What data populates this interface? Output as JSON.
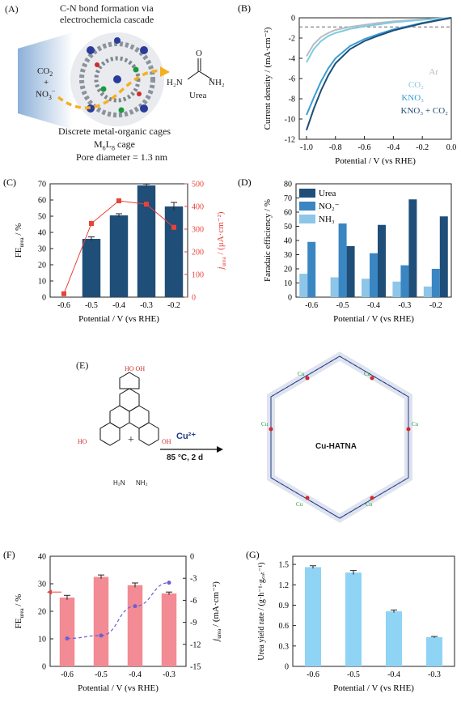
{
  "panels": {
    "A": {
      "label": "(A)",
      "title_line1": "C-N bond formation via",
      "title_line2": "electrochemicla cascade",
      "reactant_line1": "CO",
      "reactant_sub1": "2",
      "reactant_plus": "+",
      "reactant_line2": "NO",
      "reactant_sub2": "3",
      "reactant_sup2": "−",
      "product": "Urea",
      "product_formula_left": "H₂N",
      "product_formula_right": "NH₂",
      "product_o": "O",
      "caption_line1": "Discrete metal-organic cages",
      "caption_line2_a": "M",
      "caption_line2_s1": "6",
      "caption_line2_b": "L",
      "caption_line2_s2": "8",
      "caption_line2_c": " cage",
      "caption_line3": "Pore diameter = 1.3 nm"
    },
    "E": {
      "label": "(E)",
      "reagent": "Cu²⁺",
      "conditions": "85 °C, 2 d",
      "plus": "+",
      "product_name": "Cu-HATNA",
      "metal_label": "Cu",
      "oh_label": "OH",
      "ho_label": "HO",
      "amine_left": "H₂N",
      "amine_right": "NH₂"
    }
  },
  "chart_data": [
    {
      "id": "B",
      "label": "(B)",
      "type": "line",
      "xlabel": "Potential / V (vs RHE)",
      "ylabel": "Current density / (mA·cm⁻²)",
      "xlim": [
        -1.05,
        0.0
      ],
      "ylim": [
        -12,
        0
      ],
      "xticks": [
        "-1.0",
        "-0.8",
        "-0.6",
        "-0.4",
        "-0.2",
        "0.0"
      ],
      "yticks": [
        "0",
        "-2",
        "-4",
        "-6",
        "-8",
        "-10",
        "-12"
      ],
      "reference_line_y": -0.9,
      "series": [
        {
          "name": "Ar",
          "color": "#b7bcc1",
          "x": [
            -1.0,
            -0.95,
            -0.9,
            -0.85,
            -0.8,
            -0.7,
            -0.6,
            -0.5,
            -0.4,
            -0.2,
            0.0
          ],
          "y": [
            -3.8,
            -2.6,
            -1.9,
            -1.5,
            -1.2,
            -0.9,
            -0.7,
            -0.5,
            -0.35,
            -0.15,
            0.0
          ]
        },
        {
          "name": "CO₂",
          "color": "#7fcbe3",
          "x": [
            -1.0,
            -0.95,
            -0.9,
            -0.85,
            -0.8,
            -0.7,
            -0.6,
            -0.5,
            -0.4,
            -0.2,
            0.0
          ],
          "y": [
            -4.4,
            -3.1,
            -2.3,
            -1.8,
            -1.5,
            -1.1,
            -0.85,
            -0.65,
            -0.45,
            -0.2,
            0.0
          ]
        },
        {
          "name": "KNO₃",
          "color": "#3a9fd1",
          "x": [
            -1.0,
            -0.95,
            -0.9,
            -0.85,
            -0.8,
            -0.7,
            -0.6,
            -0.5,
            -0.4,
            -0.2,
            0.0
          ],
          "y": [
            -9.6,
            -7.9,
            -6.3,
            -5.0,
            -4.0,
            -2.8,
            -2.1,
            -1.6,
            -1.15,
            -0.5,
            0.0
          ]
        },
        {
          "name": "KNO₃ + CO₂",
          "color": "#1f4e79",
          "x": [
            -1.0,
            -0.95,
            -0.9,
            -0.85,
            -0.8,
            -0.7,
            -0.6,
            -0.5,
            -0.4,
            -0.2,
            0.0
          ],
          "y": [
            -11.1,
            -9.0,
            -7.2,
            -5.7,
            -4.5,
            -3.1,
            -2.3,
            -1.75,
            -1.25,
            -0.55,
            0.0
          ]
        }
      ]
    },
    {
      "id": "C",
      "label": "(C)",
      "type": "bar",
      "xlabel": "Potential / V (vs RHE)",
      "ylabel_main": "FE",
      "ylabel_sub": "urea",
      "ylabel_unit": " / %",
      "y2label_main": "j",
      "y2label_sub": "urea",
      "y2label_unit": " / (μA·cm⁻²)",
      "categories": [
        "-0.6",
        "-0.5",
        "-0.4",
        "-0.3",
        "-0.2"
      ],
      "yticks": [
        "0",
        "10",
        "20",
        "30",
        "40",
        "50",
        "60",
        "70"
      ],
      "y2ticks": [
        "0",
        "100",
        "200",
        "300",
        "400",
        "500"
      ],
      "ylim": [
        0,
        70
      ],
      "y2lim": [
        0,
        500
      ],
      "bar_color": "#1f4e79",
      "line_color": "#e8413a",
      "series": [
        {
          "values": [
            0,
            36,
            50.5,
            69,
            56
          ],
          "errors": [
            0,
            1.2,
            1,
            0.8,
            2.5
          ]
        },
        {
          "values": [
            15,
            325,
            425,
            410,
            308
          ],
          "errors": [
            5,
            12,
            10,
            8,
            12
          ]
        }
      ]
    },
    {
      "id": "D",
      "label": "(D)",
      "type": "bar",
      "xlabel": "Potential / V (vs RHE)",
      "ylabel": "Faradaic efficiency / %",
      "categories": [
        "-0.6",
        "-0.5",
        "-0.4",
        "-0.3",
        "-0.2"
      ],
      "yticks": [
        "0",
        "10",
        "20",
        "30",
        "40",
        "50",
        "60",
        "70",
        "80"
      ],
      "ylim": [
        0,
        80
      ],
      "series": [
        {
          "name": "Urea",
          "color": "#1f4e79",
          "values": [
            0,
            36,
            51,
            69,
            57
          ]
        },
        {
          "name": "NO₂⁻",
          "color": "#3a86c3",
          "values": [
            39,
            52,
            31,
            22.5,
            20
          ]
        },
        {
          "name": "NH₃",
          "color": "#8dc6e8",
          "values": [
            16.5,
            14,
            13,
            11,
            7.5
          ]
        }
      ]
    },
    {
      "id": "F",
      "label": "(F)",
      "type": "bar",
      "xlabel": "Potential / V (vs RHE)",
      "ylabel_main": "FE",
      "ylabel_sub": "urea",
      "ylabel_unit": " / %",
      "y2label_main": "j",
      "y2label_sub": "urea",
      "y2label_unit": " / (mA·cm⁻²)",
      "categories": [
        "-0.6",
        "-0.5",
        "-0.4",
        "-0.3"
      ],
      "yticks": [
        "0",
        "10",
        "20",
        "30",
        "40"
      ],
      "y2ticks": [
        "0",
        "-3",
        "-6",
        "-9",
        "-12",
        "-15"
      ],
      "ylim": [
        0,
        40
      ],
      "y2lim": [
        -15,
        0
      ],
      "bar_color": "#f28b93",
      "line_color": "#6b5fd4",
      "series": [
        {
          "values": [
            25,
            32.5,
            29.5,
            26.5
          ],
          "errors": [
            0.8,
            0.7,
            0.8,
            0.5
          ]
        },
        {
          "values": [
            -11.2,
            -10.8,
            -6.8,
            -3.6
          ]
        }
      ]
    },
    {
      "id": "G",
      "label": "(G)",
      "type": "bar",
      "xlabel": "Potential / V (vs RHE)",
      "ylabel": "Urea yield rate / (g·h⁻¹·g꜀ₐₜ⁻¹)",
      "categories": [
        "-0.6",
        "-0.5",
        "-0.4",
        "-0.3"
      ],
      "yticks": [
        "0",
        "0.3",
        "0.6",
        "0.9",
        "1.2",
        "1.5"
      ],
      "ylim": [
        0,
        1.62
      ],
      "bar_color": "#8fd3f5",
      "series": [
        {
          "values": [
            1.46,
            1.38,
            0.81,
            0.43
          ],
          "errors": [
            0.02,
            0.03,
            0.02,
            0.01
          ]
        }
      ]
    }
  ]
}
